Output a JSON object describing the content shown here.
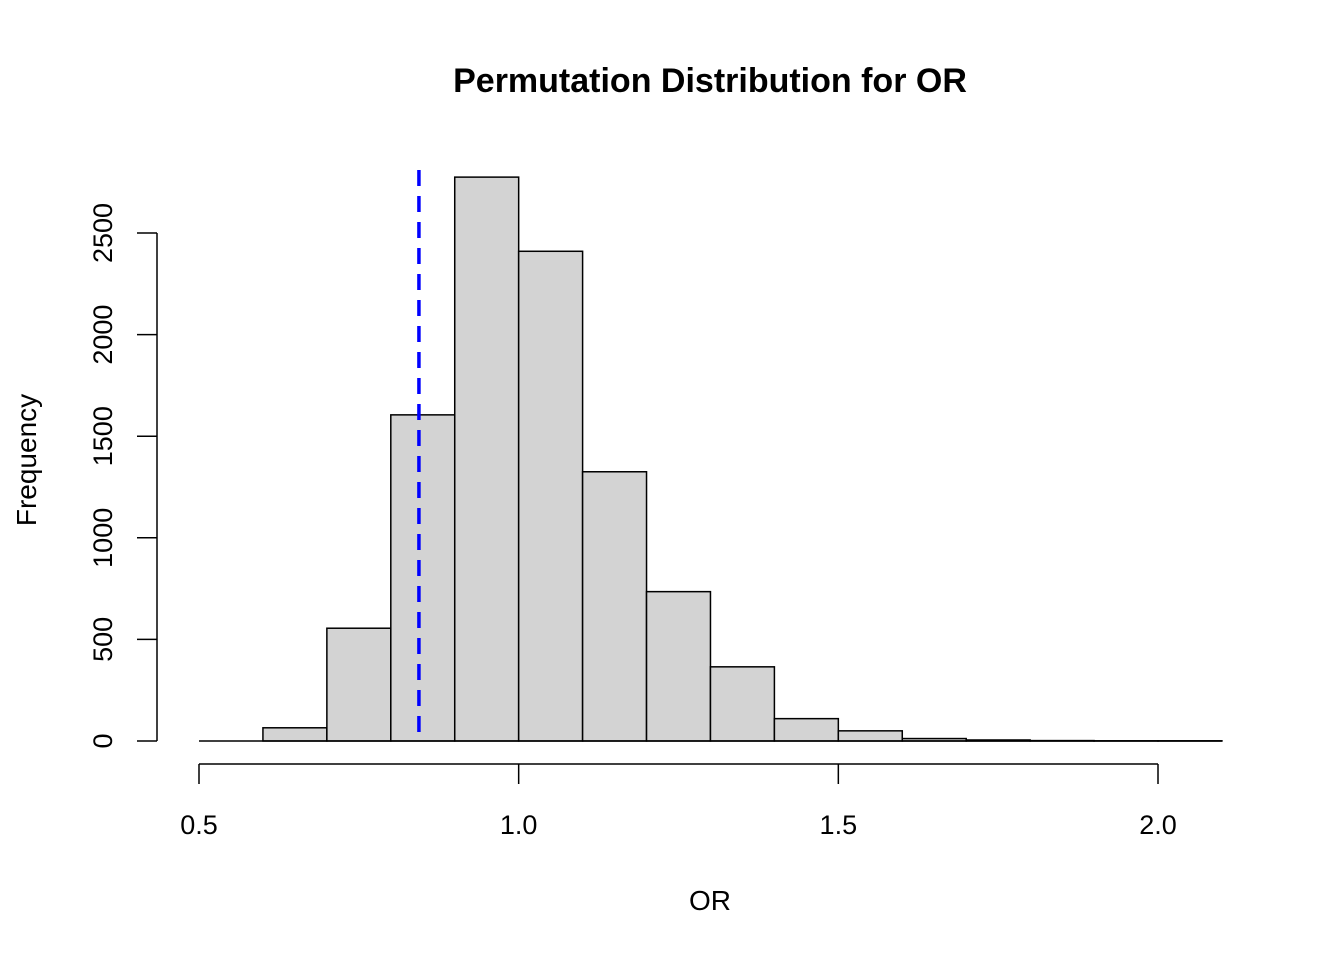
{
  "chart_data": {
    "type": "bar",
    "title": "Permutation Distribution for OR",
    "xlabel": "OR",
    "ylabel": "Frequency",
    "bin_edges": [
      0.5,
      0.6,
      0.7,
      0.8,
      0.9,
      1.0,
      1.1,
      1.2,
      1.3,
      1.4,
      1.5,
      1.6,
      1.7,
      1.8,
      1.9,
      2.0,
      2.1
    ],
    "values": [
      0,
      65,
      555,
      1605,
      2775,
      2410,
      1325,
      735,
      365,
      110,
      50,
      12,
      5,
      2,
      1,
      1
    ],
    "xlim": [
      0.5,
      2.1
    ],
    "ylim": [
      0,
      2775
    ],
    "x_ticks": [
      0.5,
      1.0,
      1.5,
      2.0
    ],
    "x_tick_labels": [
      "0.5",
      "1.0",
      "1.5",
      "2.0"
    ],
    "y_ticks": [
      0,
      500,
      1000,
      1500,
      2000,
      2500
    ],
    "y_tick_labels": [
      "0",
      "500",
      "1000",
      "1500",
      "2000",
      "2500"
    ],
    "observed_line": {
      "x": 0.844,
      "color": "#0000ff",
      "style": "dashed"
    },
    "bar_fill": "#d3d3d3",
    "bar_stroke": "#000000",
    "grid": false,
    "legend": "none"
  }
}
